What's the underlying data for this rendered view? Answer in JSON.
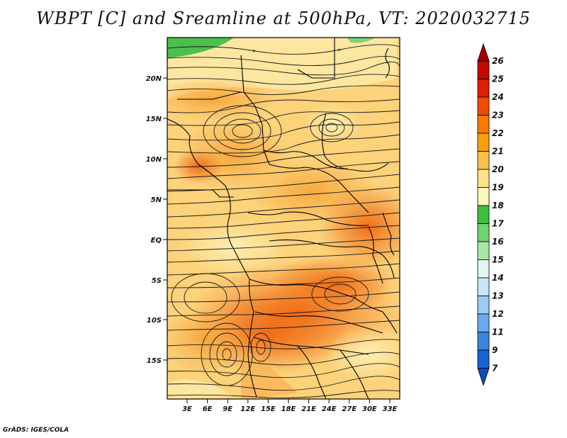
{
  "title": "WBPT [C] and Sreamline at 500hPa, VT: 2020032715",
  "footer": "GrADS: IGES/COLA",
  "map": {
    "lat_labels": [
      "20N",
      "15N",
      "10N",
      "5N",
      "EQ",
      "5S",
      "10S",
      "15S"
    ],
    "lon_labels": [
      "3E",
      "6E",
      "9E",
      "12E",
      "15E",
      "18E",
      "21E",
      "24E",
      "27E",
      "30E",
      "33E"
    ]
  },
  "colorbar": {
    "levels": [
      "26",
      "25",
      "24",
      "23",
      "22",
      "21",
      "20",
      "19",
      "18",
      "17",
      "16",
      "15",
      "14",
      "13",
      "12",
      "11",
      "9",
      "7"
    ],
    "colors": [
      "#a50000",
      "#c30a00",
      "#e01f00",
      "#f24c00",
      "#fa7a00",
      "#fb9e10",
      "#fcc04a",
      "#fde28c",
      "#fef5c0",
      "#3fbf3f",
      "#6fd36f",
      "#a8e6a8",
      "#e0f6f0",
      "#c8e6f8",
      "#9ccaf2",
      "#6aaaec",
      "#3a85e0",
      "#1a62d2",
      "#0a4ac8"
    ]
  }
}
